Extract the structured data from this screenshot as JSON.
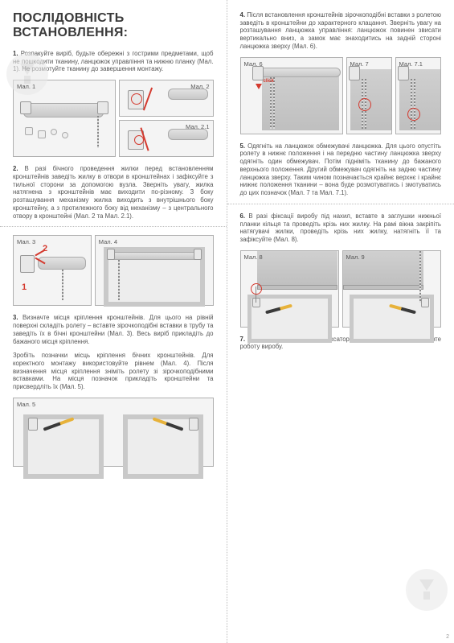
{
  "page_number": "2",
  "left": {
    "title": "ПОСЛІДОВНІСТЬ ВСТАНОВЛЕННЯ:",
    "p1": "<b>1.</b> Розпакуйте виріб, будьте обережні з гострими предметами, щоб не пошкодити тканину, ланцюжок управління та нижню планку (Мал. 1). Не розмотуйте тканину до завершення монтажу.",
    "p2": "<b>2.</b> В разі бічного проведення жилки перед встановленням кронштейнів заведіть жилку в отвори в кронштейнах і зафіксуйте з тильної сторони за допомогою вузла. Зверніть увагу, жилка натягнена з кронштейнів має виходити по-різному. З боку розташування механізму жилка виходить з внутрішнього боку кронштейну, а з протилежного боку від механізму – з центрального отвору в кронштейні (Мал. 2 та Мал. 2.1).",
    "p3": "<b>3.</b> Визначте місця кріплення кронштейнів. Для цього на рівній поверхні складіть ролету – вставте зірочкоподібні вставки в трубу та заведіть їх в бічні кронштейни (Мал. 3). Весь виріб прикладіть до бажаного місця кріплення.",
    "p3b": "Зробіть позначки місць кріплення бічних кронштейнів. Для коректного монтажу використовуйте рівнем (Мал. 4). Після визначення місця кріплення зніміть ролету зі зірочкоподібними вставками. На місця позначок прикладіть кронштейни та присвердліть їх (Мал. 5).",
    "fig1": "Мал. 1",
    "fig2": "Мал. 2",
    "fig21": "Мал. 2.1",
    "fig3": "Мал. 3",
    "fig4": "Мал. 4",
    "fig5": "Мал. 5"
  },
  "right": {
    "p4": "<b>4.</b> Після встановлення кронштейнів зірочкоподібні вставки з ролетою заведіть в кронштейни до характерного клацання. Зверніть увагу на розташування ланцюжка управління: ланцюжок повинен звисати вертикально вниз, а замок має знаходитись на задній стороні ланцюжка зверху (Мал. 6).",
    "p5": "<b>5.</b> Одягніть на ланцюжок обмежувачі ланцюжка. Для цього опустіть ролету в нижнє положення і на передню частину ланцюжка зверху одягніть один обмежувач. Потім підніміть тканину до бажаного верхнього положення. Другий обмежувач одягніть на задню частину ланцюжка зверху. Таким чином позначається крайнє верхнє і крайнє нижнє положення тканини – вона буде розмотуватись і змотуватись до цих позначок (Мал. 7 та Мал. 7.1).",
    "p6": "<b>6.</b> В разі фіксації виробу під нахил, вставте в заглушки нижньої планки кільця та проведіть крізь них жилку. На рамі вікна закріпіть натягувачі жилки, проведіть крізь них жилку, натягніть її та зафіксуйте (Мал. 8).",
    "p7": "<b>7.</b> На раму вікна прикрутіть фіксатор ланцюжка (Мал. 9). Перевірте роботу виробу.",
    "fig6": "Мал. 6",
    "fig7": "Мал. 7",
    "fig71": "Мал. 7.1",
    "fig8": "Мал. 8",
    "fig9": "Мал. 9",
    "click": "click"
  },
  "colors": {
    "text": "#555555",
    "heading": "#3a3a3a",
    "accent": "#d43a2f",
    "border": "#b0b0b0",
    "fig_bg": "#f4f4f4"
  }
}
